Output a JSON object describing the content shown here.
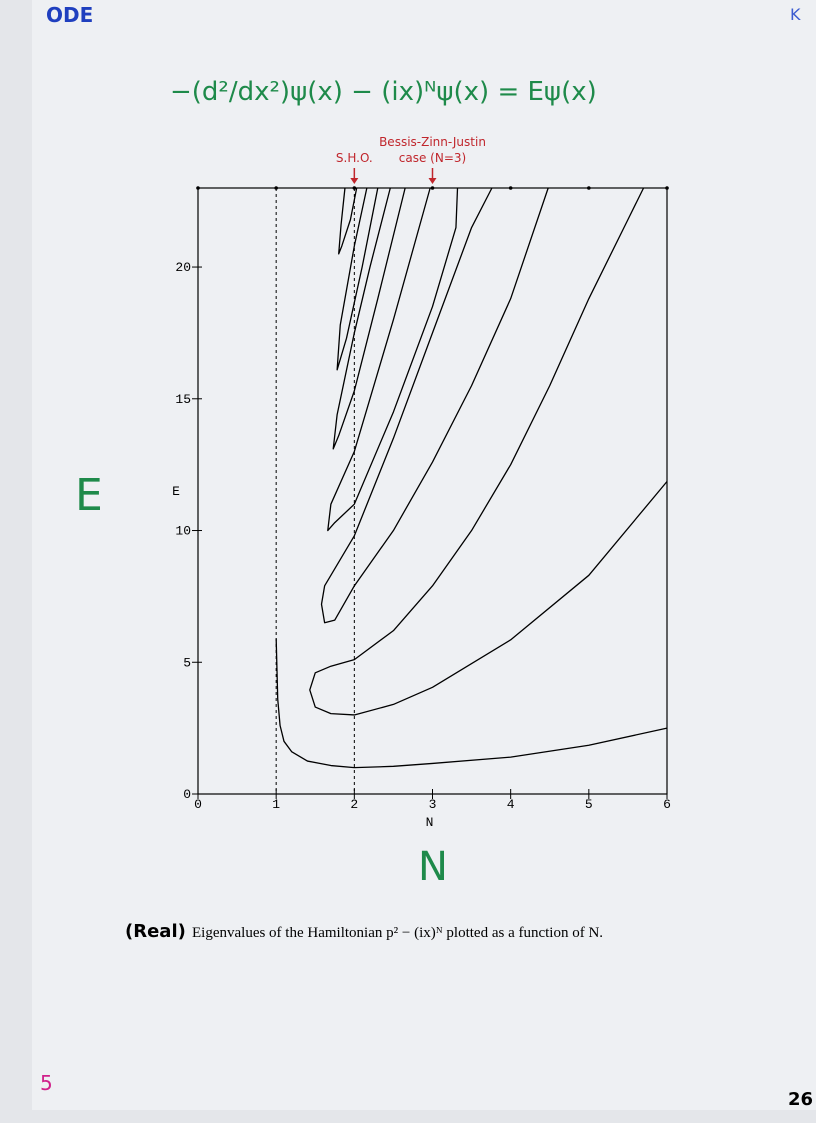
{
  "header": {
    "label": "ODE",
    "corner": "K"
  },
  "equation": "−(d²/dx²)ψ(x) − (ix)ᴺψ(x) = Eψ(x)",
  "handwritten_axis_labels": {
    "y": "E",
    "x": "N"
  },
  "caption": {
    "tag": "(Real)",
    "text": "Eigenvalues of the Hamiltonian p² − (ix)ᴺ plotted as a function of N."
  },
  "page_numbers": {
    "left": "5",
    "right": "26"
  },
  "chart_data": {
    "type": "line",
    "xlabel": "N",
    "ylabel": "E",
    "xlim": [
      0,
      6
    ],
    "ylim": [
      0,
      23
    ],
    "xticks": [
      0,
      1,
      2,
      3,
      4,
      5,
      6
    ],
    "yticks": [
      0,
      5,
      10,
      15,
      20
    ],
    "vlines": [
      1,
      2
    ],
    "annotations": [
      {
        "x": 2,
        "lines": [
          "S.H.O."
        ],
        "color": "#c0262c"
      },
      {
        "x": 3,
        "lines": [
          "Bessis-Zinn-Justin",
          "case (N=3)"
        ],
        "color": "#c0262c"
      }
    ],
    "series": [
      {
        "color": "#000000",
        "x": [
          1,
          1.02,
          1.05,
          1.1,
          1.2,
          1.4,
          1.7,
          2,
          2.5,
          3,
          4,
          5,
          6
        ],
        "values": [
          5.9,
          3.6,
          2.6,
          2.0,
          1.6,
          1.25,
          1.08,
          1.0,
          1.05,
          1.16,
          1.4,
          1.85,
          2.5
        ]
      },
      {
        "color": "#000000",
        "x": [
          6,
          5,
          4,
          3,
          2.5,
          2,
          1.7,
          1.5,
          1.43,
          1.5,
          1.7,
          2,
          2.5,
          3,
          3.5,
          4,
          4.5,
          5,
          5.5,
          5.7
        ],
        "values": [
          11.86,
          8.3,
          5.85,
          4.05,
          3.4,
          3.0,
          3.05,
          3.3,
          3.95,
          4.6,
          4.85,
          5.1,
          6.2,
          7.9,
          10.0,
          12.5,
          15.5,
          18.8,
          21.8,
          23
        ]
      },
      {
        "color": "#000000",
        "x": [
          4.48,
          4,
          3.5,
          3,
          2.5,
          2,
          1.75,
          1.62,
          1.58,
          1.62,
          1.7,
          2,
          2.5,
          3,
          3.5,
          3.76
        ],
        "values": [
          23,
          18.8,
          15.5,
          12.6,
          10.0,
          7.9,
          6.6,
          6.5,
          7.2,
          7.9,
          8.3,
          9.8,
          13.5,
          17.5,
          21.5,
          23
        ]
      },
      {
        "color": "#000000",
        "x": [
          3.32,
          3.3,
          3,
          2.5,
          2,
          1.75,
          1.66,
          1.7,
          2,
          2.5,
          2.97
        ],
        "values": [
          23,
          21.5,
          18.5,
          14.5,
          11.0,
          10.3,
          10.0,
          11.0,
          13.0,
          18.0,
          23
        ]
      },
      {
        "color": "#000000",
        "x": [
          2.65,
          2.3,
          2,
          1.8,
          1.73,
          1.78,
          2,
          2.2,
          2.46
        ],
        "values": [
          23,
          18.8,
          15.3,
          13.6,
          13.1,
          14.4,
          17.5,
          20.0,
          23
        ]
      },
      {
        "color": "#000000",
        "x": [
          2.3,
          2.1,
          1.9,
          1.78,
          1.82,
          2.0,
          2.16
        ],
        "values": [
          23,
          20.0,
          17.3,
          16.1,
          17.8,
          20.8,
          23
        ]
      },
      {
        "color": "#000000",
        "x": [
          2.03,
          1.95,
          1.84,
          1.8,
          1.83,
          1.88
        ],
        "values": [
          23,
          21.8,
          20.8,
          20.5,
          21.6,
          23
        ]
      }
    ]
  }
}
